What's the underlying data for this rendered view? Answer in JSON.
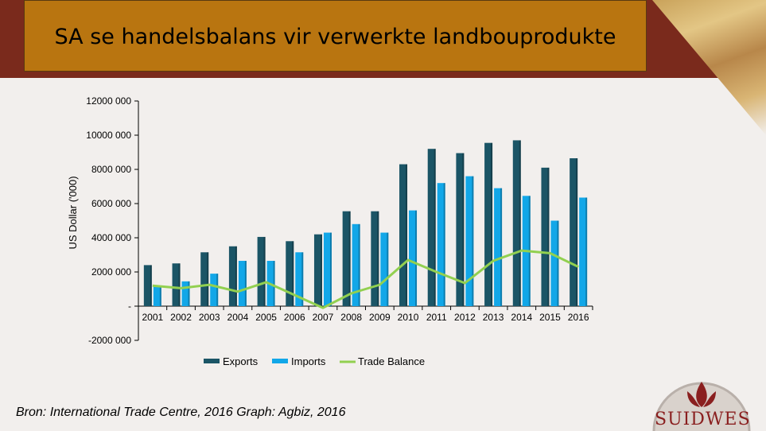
{
  "header": {
    "title": "SA se handelsbalans vir verwerkte landbouprodukte"
  },
  "source": "Bron: International Trade Centre, 2016 Graph: Agbiz, 2016",
  "logo": {
    "text": "SUIDWES"
  },
  "colors": {
    "exports": "#1b5566",
    "imports": "#12a7e8",
    "balance": "#92d050"
  },
  "chart_data": {
    "type": "bar",
    "title": "SA se handelsbalans vir verwerkte landbouprodukte",
    "xlabel": "",
    "ylabel": "US Dollar ('000)",
    "ylim": [
      -2000000,
      12000000
    ],
    "yticks": [
      -2000000,
      0,
      2000000,
      4000000,
      6000000,
      8000000,
      10000000,
      12000000
    ],
    "ytick_labels": [
      "-2000 000",
      "-",
      "2000 000",
      "4000 000",
      "6000 000",
      "8000 000",
      "10000 000",
      "12000 000"
    ],
    "categories": [
      "2001",
      "2002",
      "2003",
      "2004",
      "2005",
      "2006",
      "2007",
      "2008",
      "2009",
      "2010",
      "2011",
      "2012",
      "2013",
      "2014",
      "2015",
      "2016"
    ],
    "series": [
      {
        "name": "Exports",
        "kind": "bar",
        "values": [
          2400000,
          2500000,
          3150000,
          3500000,
          4050000,
          3800000,
          4200000,
          5550000,
          5550000,
          8300000,
          9200000,
          8950000,
          9550000,
          9700000,
          8100000,
          8650000
        ]
      },
      {
        "name": "Imports",
        "kind": "bar",
        "values": [
          1200000,
          1450000,
          1900000,
          2650000,
          2650000,
          3150000,
          4300000,
          4800000,
          4300000,
          5600000,
          7200000,
          7600000,
          6900000,
          6450000,
          5000000,
          6350000
        ]
      },
      {
        "name": "Trade Balance",
        "kind": "line",
        "values": [
          1200000,
          1050000,
          1250000,
          850000,
          1400000,
          650000,
          -100000,
          750000,
          1250000,
          2700000,
          2000000,
          1350000,
          2650000,
          3250000,
          3100000,
          2300000
        ]
      }
    ],
    "legend": [
      "Exports",
      "Imports",
      "Trade Balance"
    ],
    "legend_position": "bottom"
  }
}
